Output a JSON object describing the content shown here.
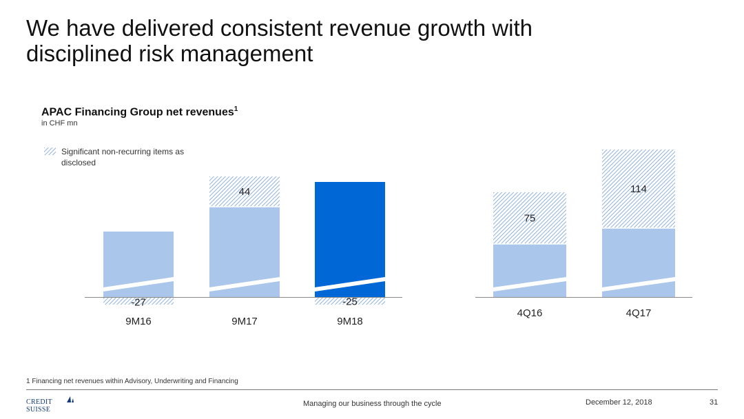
{
  "slide": {
    "title_line1": "We have delivered consistent revenue growth with",
    "title_line2": "disciplined risk management",
    "footnote": "1 Financing net revenues within Advisory, Underwriting and Financing",
    "footer_center": "Managing our business through the cycle",
    "footer_date": "December 12, 2018",
    "page_number": "31",
    "logo_text": "CREDIT SUISSE"
  },
  "chart_header": {
    "title": "APAC Financing Group net revenues",
    "title_sup": "1",
    "unit": "in CHF mn",
    "legend_label": "Significant non-recurring items as disclosed"
  },
  "colors": {
    "light_bar": "#aac6ea",
    "dark_bar": "#0068d6",
    "hatch": "#8fb2dd",
    "axis": "#888888"
  },
  "chart_data": [
    {
      "type": "bar",
      "stacked": true,
      "categories": [
        "9M16",
        "9M17",
        "9M18"
      ],
      "series": [
        {
          "values": [
            null,
            null,
            null
          ]
        },
        {
          "name": "Significant non-recurring items as disclosed",
          "values": [
            -27,
            44,
            -25
          ]
        }
      ],
      "highlight_category": "9M18",
      "broken_axis": true
    },
    {
      "type": "bar",
      "stacked": true,
      "categories": [
        "4Q16",
        "4Q17"
      ],
      "series": [
        {
          "values": [
            null,
            null
          ]
        },
        {
          "name": "Significant non-recurring items as disclosed",
          "values": [
            75,
            114
          ]
        }
      ],
      "broken_axis": true
    }
  ]
}
